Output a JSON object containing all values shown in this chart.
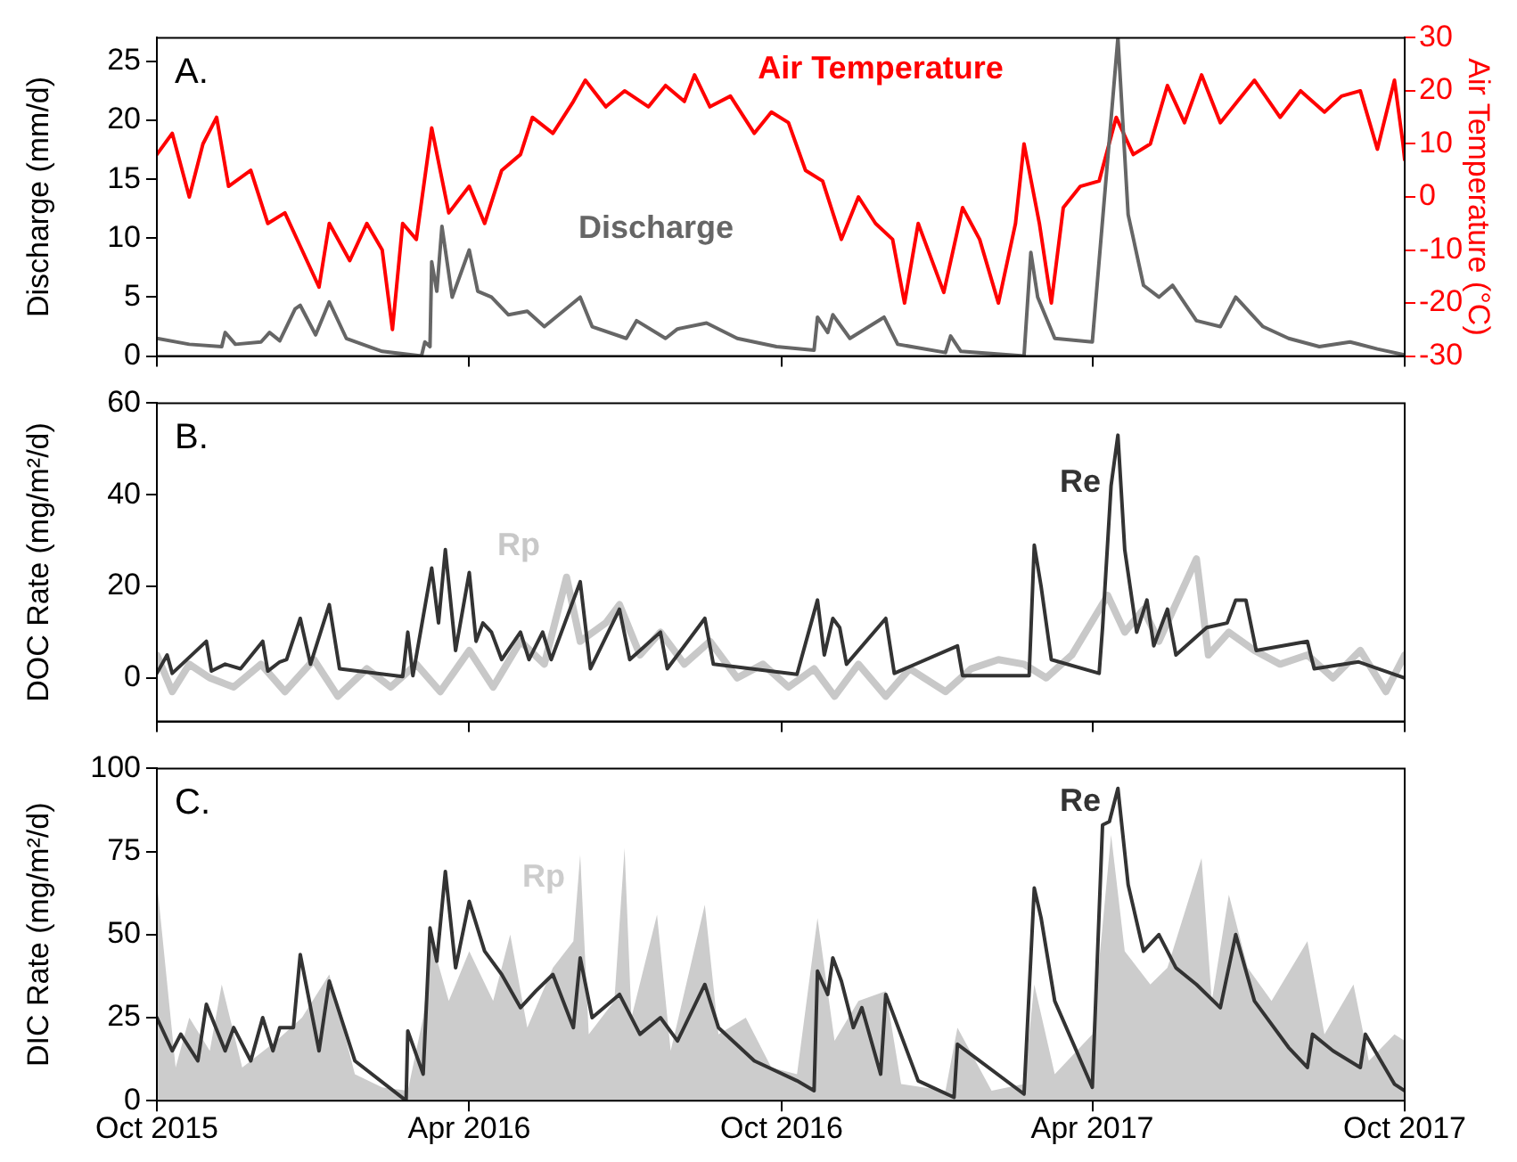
{
  "chart_data": [
    {
      "type": "line",
      "ylabel": "Discharge (mm/d)",
      "y2label": "Air Temperature (°C)",
      "annotations": [
        "A."
      ],
      "xlim": [
        "2015-10-01",
        "2017-10-01"
      ],
      "xticks": [
        {
          "value": "2015-10-01",
          "label": null
        },
        {
          "value": "2016-04-01",
          "label": null
        },
        {
          "value": "2016-10-01",
          "label": null
        },
        {
          "value": "2017-04-01",
          "label": null
        },
        {
          "value": "2017-10-01",
          "label": null
        }
      ],
      "ylim": [
        0,
        27
      ],
      "yticks": [
        0,
        5,
        10,
        15,
        20,
        25
      ],
      "y2lim": [
        -30,
        30
      ],
      "y2ticks": [
        -30,
        -20,
        -10,
        0,
        10,
        20,
        30
      ],
      "tick_labels": "y",
      "marker": "none",
      "series": [
        {
          "name": "Air Temperature",
          "color": "#ff0000",
          "axis": "y2",
          "x": [
            "2015-10-01",
            "2015-10-10",
            "2015-10-20",
            "2015-10-28",
            "2015-11-05",
            "2015-11-12",
            "2015-11-25",
            "2015-12-05",
            "2015-12-15",
            "2015-12-25",
            "2016-01-04",
            "2016-01-10",
            "2016-01-22",
            "2016-02-01",
            "2016-02-10",
            "2016-02-16",
            "2016-02-22",
            "2016-03-01",
            "2016-03-10",
            "2016-03-20",
            "2016-04-01",
            "2016-04-10",
            "2016-04-20",
            "2016-05-01",
            "2016-05-08",
            "2016-05-20",
            "2016-06-01",
            "2016-06-08",
            "2016-06-20",
            "2016-07-01",
            "2016-07-15",
            "2016-07-25",
            "2016-08-05",
            "2016-08-11",
            "2016-08-20",
            "2016-09-01",
            "2016-09-15",
            "2016-09-25",
            "2016-10-05",
            "2016-10-15",
            "2016-10-25",
            "2016-11-05",
            "2016-11-15",
            "2016-11-25",
            "2016-12-05",
            "2016-12-12",
            "2016-12-20",
            "2017-01-04",
            "2017-01-15",
            "2017-01-25",
            "2017-02-05",
            "2017-02-15",
            "2017-02-20",
            "2017-03-01",
            "2017-03-08",
            "2017-03-15",
            "2017-03-25",
            "2017-04-05",
            "2017-04-15",
            "2017-04-25",
            "2017-05-05",
            "2017-05-15",
            "2017-05-25",
            "2017-06-04",
            "2017-06-15",
            "2017-06-25",
            "2017-07-05",
            "2017-07-20",
            "2017-08-01",
            "2017-08-15",
            "2017-08-25",
            "2017-09-05",
            "2017-09-15",
            "2017-09-25",
            "2017-09-30",
            "2017-10-01"
          ],
          "values": [
            8,
            12,
            0,
            10,
            15,
            2,
            5,
            -5,
            -3,
            -10,
            -17,
            -5,
            -12,
            -5,
            -10,
            -25,
            -5,
            -8,
            13,
            -3,
            2,
            -5,
            5,
            8,
            15,
            12,
            18,
            22,
            17,
            20,
            17,
            21,
            18,
            23,
            17,
            19,
            12,
            16,
            14,
            5,
            3,
            -8,
            0,
            -5,
            -8,
            -20,
            -5,
            -18,
            -2,
            -8,
            -20,
            -5,
            10,
            -5,
            -20,
            -2,
            2,
            3,
            15,
            8,
            10,
            21,
            14,
            23,
            14,
            18,
            22,
            15,
            20,
            16,
            19,
            20,
            9,
            22,
            10,
            7
          ]
        },
        {
          "name": "Discharge",
          "color": "#666666",
          "x": [
            "2015-10-01",
            "2015-10-20",
            "2015-11-08",
            "2015-11-10",
            "2015-11-16",
            "2015-12-01",
            "2015-12-06",
            "2015-12-12",
            "2015-12-21",
            "2015-12-24",
            "2016-01-02",
            "2016-01-10",
            "2016-01-20",
            "2016-02-10",
            "2016-03-04",
            "2016-03-06",
            "2016-03-09",
            "2016-03-10",
            "2016-03-13",
            "2016-03-16",
            "2016-03-22",
            "2016-04-01",
            "2016-04-06",
            "2016-04-14",
            "2016-04-24",
            "2016-05-05",
            "2016-05-15",
            "2016-06-05",
            "2016-06-12",
            "2016-07-02",
            "2016-07-08",
            "2016-07-25",
            "2016-08-01",
            "2016-08-18",
            "2016-09-05",
            "2016-09-28",
            "2016-10-20",
            "2016-10-22",
            "2016-10-28",
            "2016-10-31",
            "2016-11-10",
            "2016-11-30",
            "2016-12-08",
            "2017-01-05",
            "2017-01-08",
            "2017-01-14",
            "2017-02-20",
            "2017-02-24",
            "2017-02-28",
            "2017-03-10",
            "2017-04-01",
            "2017-04-16",
            "2017-04-22",
            "2017-05-01",
            "2017-05-10",
            "2017-05-18",
            "2017-06-01",
            "2017-06-15",
            "2017-06-24",
            "2017-07-10",
            "2017-07-25",
            "2017-08-12",
            "2017-08-30",
            "2017-09-15",
            "2017-10-01"
          ],
          "values": [
            1.5,
            1.0,
            0.8,
            2.0,
            1.0,
            1.2,
            2.0,
            1.3,
            4.0,
            4.3,
            1.8,
            4.6,
            1.5,
            0.4,
            0.0,
            1.2,
            0.8,
            8.0,
            5.5,
            11.0,
            5.0,
            9.0,
            5.5,
            5.0,
            3.5,
            3.8,
            2.5,
            5.0,
            2.5,
            1.5,
            3.0,
            1.5,
            2.3,
            2.8,
            1.5,
            0.8,
            0.5,
            3.3,
            2.0,
            3.5,
            1.5,
            3.3,
            1.0,
            0.3,
            1.7,
            0.4,
            0.0,
            8.8,
            5.0,
            1.5,
            1.2,
            27.0,
            12.0,
            6.0,
            5.0,
            6.0,
            3.0,
            2.5,
            5.0,
            2.5,
            1.5,
            0.8,
            1.2,
            0.6,
            0.1
          ]
        }
      ]
    },
    {
      "type": "line",
      "ylabel": "DOC Rate (mg/m²/d)",
      "annotations": [
        "B."
      ],
      "xlim": [
        "2015-10-01",
        "2017-10-01"
      ],
      "xticks": [
        {
          "value": "2015-10-01",
          "label": null
        },
        {
          "value": "2016-04-01",
          "label": null
        },
        {
          "value": "2016-10-01",
          "label": null
        },
        {
          "value": "2017-04-01",
          "label": null
        },
        {
          "value": "2017-10-01",
          "label": null
        }
      ],
      "ylim": [
        -9.5,
        60
      ],
      "yticks": [
        0,
        20,
        40,
        60
      ],
      "tick_labels": "y",
      "marker": "none",
      "series": [
        {
          "name": "Rp",
          "color": "#c8c8c8",
          "x": [
            "2015-10-01",
            "2015-10-10",
            "2015-10-20",
            "2015-11-01",
            "2015-11-15",
            "2015-12-01",
            "2015-12-15",
            "2016-01-01",
            "2016-01-15",
            "2016-02-01",
            "2016-02-15",
            "2016-03-01",
            "2016-03-15",
            "2016-04-01",
            "2016-04-15",
            "2016-05-01",
            "2016-05-15",
            "2016-05-28",
            "2016-06-05",
            "2016-06-20",
            "2016-06-28",
            "2016-07-10",
            "2016-07-22",
            "2016-08-05",
            "2016-08-20",
            "2016-09-05",
            "2016-09-20",
            "2016-10-05",
            "2016-10-20",
            "2016-11-01",
            "2016-11-15",
            "2016-12-01",
            "2016-12-15",
            "2017-01-05",
            "2017-01-20",
            "2017-02-05",
            "2017-02-20",
            "2017-03-05",
            "2017-03-20",
            "2017-04-10",
            "2017-04-20",
            "2017-05-01",
            "2017-05-10",
            "2017-06-01",
            "2017-06-08",
            "2017-06-20",
            "2017-07-05",
            "2017-07-20",
            "2017-08-05",
            "2017-08-20",
            "2017-09-05",
            "2017-09-20",
            "2017-10-01"
          ],
          "values": [
            5,
            -3,
            3,
            0,
            -2,
            3,
            -3,
            4,
            -4,
            2,
            -2,
            3,
            -3,
            6,
            -2,
            8,
            3,
            22,
            8,
            12,
            16,
            5,
            10,
            3,
            8,
            0,
            3,
            -2,
            2,
            -4,
            3,
            -4,
            2,
            -3,
            2,
            4,
            3,
            0,
            5,
            18,
            10,
            15,
            8,
            26,
            5,
            10,
            6,
            3,
            5,
            0,
            6,
            -3,
            5
          ]
        },
        {
          "name": "Re",
          "color": "#333333",
          "x": [
            "2015-10-01",
            "2015-10-07",
            "2015-10-10",
            "2015-10-30",
            "2015-11-02",
            "2015-11-10",
            "2015-11-19",
            "2015-12-02",
            "2015-12-05",
            "2015-12-12",
            "2015-12-16",
            "2015-12-24",
            "2015-12-30",
            "2016-01-10",
            "2016-01-16",
            "2016-02-22",
            "2016-02-25",
            "2016-02-28",
            "2016-03-10",
            "2016-03-14",
            "2016-03-18",
            "2016-03-24",
            "2016-04-01",
            "2016-04-05",
            "2016-04-09",
            "2016-04-14",
            "2016-04-20",
            "2016-05-01",
            "2016-05-06",
            "2016-05-14",
            "2016-05-19",
            "2016-06-05",
            "2016-06-11",
            "2016-06-28",
            "2016-07-04",
            "2016-07-22",
            "2016-07-26",
            "2016-08-17",
            "2016-08-22",
            "2016-10-10",
            "2016-10-22",
            "2016-10-26",
            "2016-10-31",
            "2016-11-04",
            "2016-11-08",
            "2016-12-01",
            "2016-12-06",
            "2017-01-12",
            "2017-01-15",
            "2017-02-23",
            "2017-02-26",
            "2017-03-02",
            "2017-03-08",
            "2017-04-05",
            "2017-04-07",
            "2017-04-12",
            "2017-04-16",
            "2017-04-20",
            "2017-04-27",
            "2017-05-03",
            "2017-05-07",
            "2017-05-15",
            "2017-05-20",
            "2017-06-07",
            "2017-06-19",
            "2017-06-24",
            "2017-06-30",
            "2017-07-06",
            "2017-08-05",
            "2017-08-09",
            "2017-09-04",
            "2017-10-01"
          ],
          "values": [
            1,
            5,
            1,
            8,
            1.5,
            3,
            2,
            8,
            1.5,
            3.5,
            4,
            13,
            3,
            16,
            2,
            0.3,
            10,
            0.5,
            24,
            12,
            28,
            6,
            23,
            8,
            12,
            10,
            4,
            10,
            4,
            10,
            4,
            21,
            2,
            15,
            4,
            10,
            2,
            13,
            3,
            0.8,
            17,
            5,
            13,
            11,
            3,
            13,
            1,
            7,
            0.5,
            0.5,
            29,
            20,
            4,
            1,
            11,
            42,
            53,
            28,
            10,
            17,
            7,
            15,
            5,
            11,
            12,
            17,
            17,
            6,
            8,
            2,
            3.5,
            0
          ]
        }
      ]
    },
    {
      "type": "line",
      "ylabel": "DIC Rate (mg/m²/d)",
      "annotations": [
        "C."
      ],
      "xlim": [
        "2015-10-01",
        "2017-10-01"
      ],
      "xticks": [
        {
          "value": "2015-10-01",
          "label": "Oct 2015"
        },
        {
          "value": "2016-04-01",
          "label": "Apr 2016"
        },
        {
          "value": "2016-10-01",
          "label": "Oct 2016"
        },
        {
          "value": "2017-04-01",
          "label": "Apr 2017"
        },
        {
          "value": "2017-10-01",
          "label": "Oct 2017"
        }
      ],
      "ylim": [
        0,
        100
      ],
      "yticks": [
        0,
        25,
        50,
        75,
        100
      ],
      "marker": "none",
      "series": [
        {
          "name": "Rp",
          "type": "area",
          "color": "#cccccc",
          "x": [
            "2015-10-01",
            "2015-10-12",
            "2015-10-20",
            "2015-11-01",
            "2015-11-08",
            "2015-11-20",
            "2015-12-10",
            "2015-12-25",
            "2016-01-10",
            "2016-01-25",
            "2016-02-10",
            "2016-02-25",
            "2016-03-05",
            "2016-03-10",
            "2016-03-20",
            "2016-04-01",
            "2016-04-15",
            "2016-04-25",
            "2016-05-05",
            "2016-05-20",
            "2016-06-01",
            "2016-06-05",
            "2016-06-10",
            "2016-06-25",
            "2016-07-01",
            "2016-07-05",
            "2016-07-20",
            "2016-07-28",
            "2016-08-17",
            "2016-08-25",
            "2016-09-10",
            "2016-09-25",
            "2016-10-10",
            "2016-10-22",
            "2016-11-01",
            "2016-11-15",
            "2016-12-01",
            "2016-12-10",
            "2017-01-05",
            "2017-01-12",
            "2017-02-01",
            "2017-02-20",
            "2017-02-26",
            "2017-03-10",
            "2017-04-01",
            "2017-04-12",
            "2017-04-20",
            "2017-05-05",
            "2017-05-15",
            "2017-06-04",
            "2017-06-10",
            "2017-06-20",
            "2017-07-01",
            "2017-07-15",
            "2017-08-05",
            "2017-08-15",
            "2017-09-01",
            "2017-09-10",
            "2017-09-25",
            "2017-10-01"
          ],
          "values": [
            66,
            10,
            25,
            15,
            35,
            10,
            18,
            25,
            38,
            8,
            4,
            3,
            25,
            48,
            30,
            45,
            30,
            50,
            22,
            40,
            48,
            74,
            20,
            30,
            76,
            25,
            56,
            15,
            59,
            20,
            25,
            10,
            8,
            55,
            18,
            30,
            33,
            5,
            3,
            22,
            3,
            5,
            35,
            8,
            20,
            80,
            45,
            35,
            40,
            73,
            30,
            62,
            40,
            30,
            48,
            20,
            35,
            12,
            20,
            18
          ]
        },
        {
          "name": "Re",
          "color": "#333333",
          "x": [
            "2015-10-01",
            "2015-10-10",
            "2015-10-15",
            "2015-10-25",
            "2015-10-30",
            "2015-11-10",
            "2015-11-15",
            "2015-11-25",
            "2015-12-02",
            "2015-12-08",
            "2015-12-12",
            "2015-12-20",
            "2015-12-24",
            "2016-01-04",
            "2016-01-10",
            "2016-01-25",
            "2016-02-24",
            "2016-02-25",
            "2016-03-05",
            "2016-03-09",
            "2016-03-13",
            "2016-03-18",
            "2016-03-24",
            "2016-04-01",
            "2016-04-10",
            "2016-04-20",
            "2016-05-01",
            "2016-05-10",
            "2016-05-20",
            "2016-06-01",
            "2016-06-05",
            "2016-06-12",
            "2016-06-28",
            "2016-07-10",
            "2016-07-22",
            "2016-08-01",
            "2016-08-17",
            "2016-08-25",
            "2016-09-15",
            "2016-10-10",
            "2016-10-20",
            "2016-10-22",
            "2016-10-28",
            "2016-10-31",
            "2016-11-05",
            "2016-11-12",
            "2016-11-17",
            "2016-11-28",
            "2016-12-01",
            "2016-12-20",
            "2017-01-10",
            "2017-01-12",
            "2017-02-20",
            "2017-02-26",
            "2017-03-02",
            "2017-03-10",
            "2017-04-01",
            "2017-04-07",
            "2017-04-11",
            "2017-04-16",
            "2017-04-22",
            "2017-05-01",
            "2017-05-10",
            "2017-05-20",
            "2017-06-01",
            "2017-06-15",
            "2017-06-24",
            "2017-07-05",
            "2017-07-25",
            "2017-08-05",
            "2017-08-08",
            "2017-08-20",
            "2017-09-05",
            "2017-09-08",
            "2017-09-25",
            "2017-10-01"
          ],
          "values": [
            25,
            15,
            20,
            12,
            29,
            15,
            22,
            12,
            25,
            15,
            22,
            22,
            44,
            15,
            36,
            12,
            0,
            21,
            8,
            52,
            42,
            69,
            40,
            60,
            45,
            38,
            28,
            33,
            38,
            22,
            43,
            25,
            32,
            20,
            25,
            18,
            35,
            22,
            12,
            6,
            3,
            39,
            32,
            43,
            36,
            22,
            28,
            8,
            32,
            6,
            1,
            17,
            2,
            64,
            55,
            30,
            4,
            83,
            84,
            94,
            65,
            45,
            50,
            40,
            35,
            28,
            50,
            30,
            16,
            10,
            20,
            15,
            10,
            20,
            5,
            3
          ]
        }
      ]
    }
  ]
}
